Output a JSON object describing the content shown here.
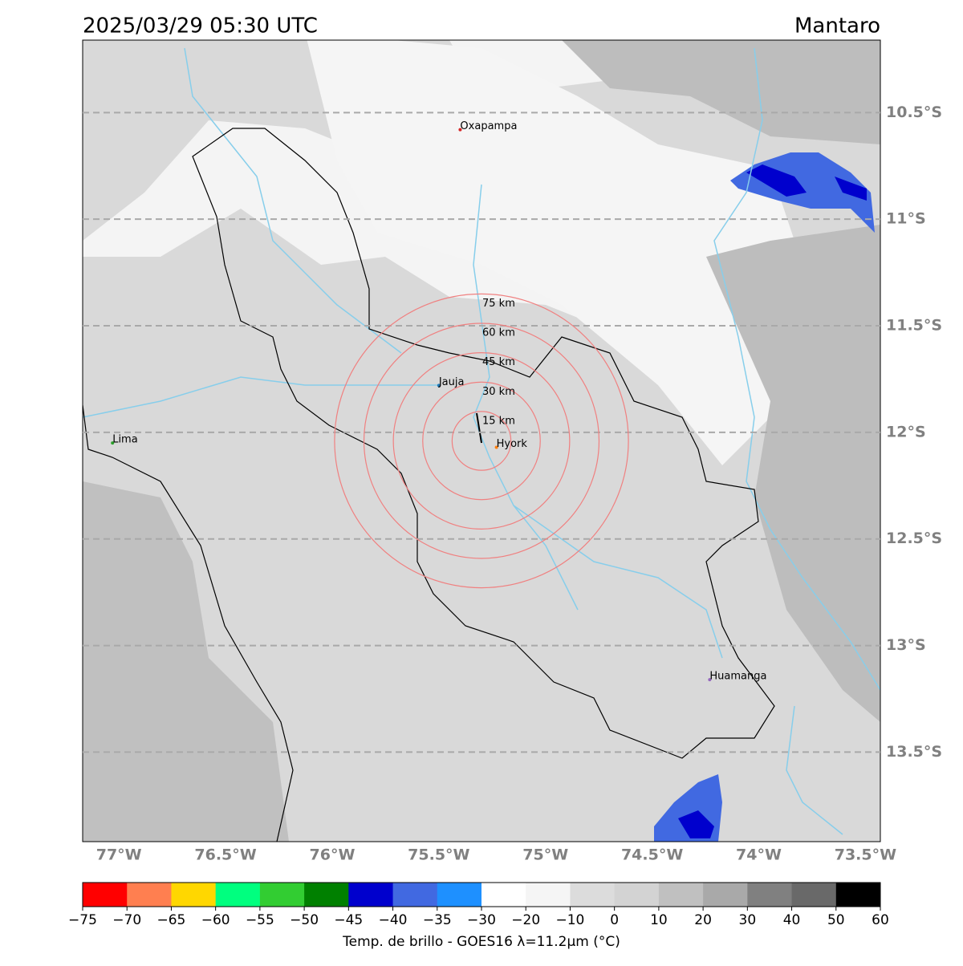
{
  "header": {
    "title": "2025/03/29 05:30 UTC",
    "region": "Mantaro"
  },
  "map": {
    "lonlim": [
      -77.17,
      -73.43
    ],
    "latlim": [
      -10.16,
      -13.92
    ],
    "lonticks": [
      {
        "value": -77,
        "label": "77°W"
      },
      {
        "value": -76.5,
        "label": "76.5°W"
      },
      {
        "value": -76,
        "label": "76°W"
      },
      {
        "value": -75.5,
        "label": "75.5°W"
      },
      {
        "value": -75,
        "label": "75°W"
      },
      {
        "value": -74.5,
        "label": "74.5°W"
      },
      {
        "value": -74,
        "label": "74°W"
      },
      {
        "value": -73.5,
        "label": "73.5°W"
      }
    ],
    "latticks": [
      {
        "value": -10.5,
        "label": "10.5°S"
      },
      {
        "value": -11,
        "label": "11°S"
      },
      {
        "value": -11.5,
        "label": "11.5°S"
      },
      {
        "value": -12,
        "label": "12°S"
      },
      {
        "value": -12.5,
        "label": "12.5°S"
      },
      {
        "value": -13,
        "label": "13°S"
      },
      {
        "value": -13.5,
        "label": "13.5°S"
      }
    ],
    "grid": true,
    "cities": [
      {
        "name": "Oxapampa",
        "lon": -75.4,
        "lat": -10.58,
        "color": "#d62728"
      },
      {
        "name": "Jauja",
        "lon": -75.5,
        "lat": -11.78,
        "color": "#1f77b4"
      },
      {
        "name": "Hyork",
        "lon": -75.23,
        "lat": -12.07,
        "color": "#ff7f0e"
      },
      {
        "name": "Lima",
        "lon": -77.03,
        "lat": -12.05,
        "color": "#2ca02c"
      },
      {
        "name": "Huamanga",
        "lon": -74.23,
        "lat": -13.16,
        "color": "#9467bd"
      }
    ],
    "rings": {
      "center": {
        "lon": -75.3,
        "lat": -12.04
      },
      "color": "#f08080",
      "items": [
        {
          "radius_km": 15,
          "label": "15 km"
        },
        {
          "radius_km": 30,
          "label": "30 km"
        },
        {
          "radius_km": 45,
          "label": "45 km"
        },
        {
          "radius_km": 60,
          "label": "60 km"
        },
        {
          "radius_km": 75,
          "label": "75 km"
        }
      ]
    }
  },
  "colorbar": {
    "label": "Temp. de brillo - GOES16 λ=11.2μm (°C)",
    "ticks": [
      {
        "value": -75,
        "label": "−75"
      },
      {
        "value": -70,
        "label": "−70"
      },
      {
        "value": -65,
        "label": "−65"
      },
      {
        "value": -60,
        "label": "−60"
      },
      {
        "value": -55,
        "label": "−55"
      },
      {
        "value": -50,
        "label": "−50"
      },
      {
        "value": -45,
        "label": "−45"
      },
      {
        "value": -40,
        "label": "−40"
      },
      {
        "value": -35,
        "label": "−35"
      },
      {
        "value": -30,
        "label": "−30"
      },
      {
        "value": -20,
        "label": "−20"
      },
      {
        "value": -10,
        "label": "−10"
      },
      0,
      10,
      20,
      30,
      40,
      50,
      60
    ],
    "colors": [
      "#ff0000",
      "#ff7f50",
      "#ffd700",
      "#00ff7f",
      "#32cd32",
      "#008000",
      "#0000cd",
      "#4169e1",
      "#1e90ff",
      "#ffffff",
      "#f5f5f5",
      "#dcdcdc",
      "#d3d3d3",
      "#c0c0c0",
      "#a9a9a9",
      "#808080",
      "#696969",
      "#000000"
    ]
  }
}
